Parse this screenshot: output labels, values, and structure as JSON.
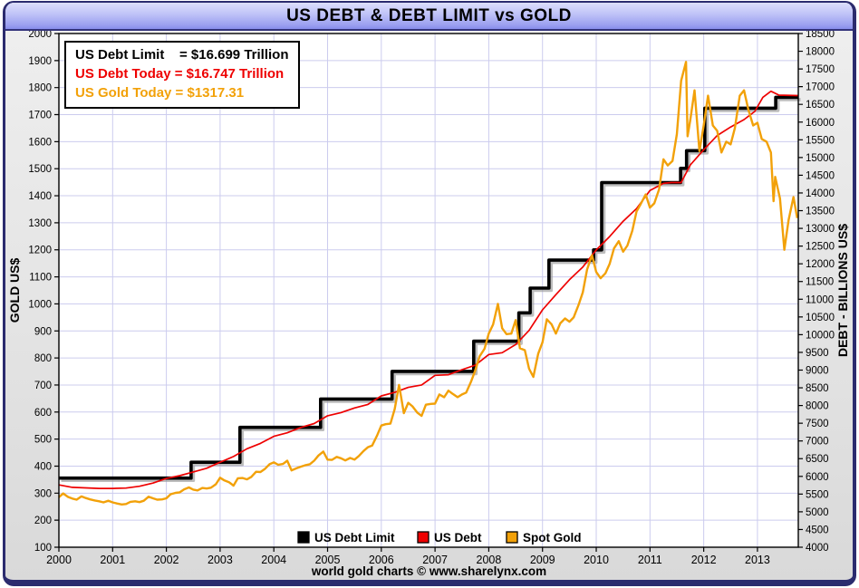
{
  "window": {
    "title": "US DEBT & DEBT LIMIT vs GOLD",
    "footer": "world gold charts © www.sharelynx.com"
  },
  "info_box": {
    "lines": [
      {
        "text": "US Debt Limit    = $16.699 Trillion",
        "color": "#000000"
      },
      {
        "text": "US Debt Today = $16.747 Trillion",
        "color": "#ee0000"
      },
      {
        "text": "US Gold Today = $1317.31",
        "color": "#f2a109"
      }
    ]
  },
  "colors": {
    "debt_limit_line": "#000000",
    "debt_line": "#ee0000",
    "gold_line": "#f2a109",
    "gridline": "#ccccee",
    "plot_background": "#ffffff",
    "panel_background": "#e4e4e4",
    "title_bar": "#b4b8f6",
    "frame_border": "#2b2b6e"
  },
  "chart_data": {
    "type": "line",
    "title": "US DEBT & DEBT LIMIT vs GOLD",
    "x_axis": {
      "range": [
        2000,
        2013.76
      ],
      "ticks": [
        2000,
        2001,
        2002,
        2003,
        2004,
        2005,
        2006,
        2007,
        2008,
        2009,
        2010,
        2011,
        2012,
        2013
      ],
      "gridlines_yearly": true
    },
    "left_axis": {
      "label": "GOLD US$",
      "range": [
        100,
        2000
      ],
      "tick_step": 100,
      "ticks": [
        100,
        200,
        300,
        400,
        500,
        600,
        700,
        800,
        900,
        1000,
        1100,
        1200,
        1300,
        1400,
        1500,
        1600,
        1700,
        1800,
        1900,
        2000
      ]
    },
    "right_axis": {
      "label": "DEBT - BILLIONS US$",
      "range": [
        4000,
        18500
      ],
      "tick_step": 500,
      "ticks": [
        4000,
        4500,
        5000,
        5500,
        6000,
        6500,
        7000,
        7500,
        8000,
        8500,
        9000,
        9500,
        10000,
        10500,
        11000,
        11500,
        12000,
        12500,
        13000,
        13500,
        14000,
        14500,
        15000,
        15500,
        16000,
        16500,
        17000,
        17500,
        18000,
        18500
      ]
    },
    "legend": {
      "position": "bottom-center",
      "items": [
        {
          "label": "US Debt Limit",
          "color": "#000000"
        },
        {
          "label": "US Debt",
          "color": "#ee0000"
        },
        {
          "label": "Spot Gold",
          "color": "#f2a109"
        }
      ]
    },
    "series": [
      {
        "name": "US Debt Limit",
        "axis": "right",
        "type": "step",
        "color": "#000000",
        "width": 3.6,
        "shadow": true,
        "points": [
          [
            2000.0,
            5950
          ],
          [
            2002.46,
            5950
          ],
          [
            2002.46,
            6400
          ],
          [
            2003.37,
            6400
          ],
          [
            2003.37,
            7384
          ],
          [
            2004.87,
            7384
          ],
          [
            2004.87,
            8184
          ],
          [
            2006.2,
            8184
          ],
          [
            2006.2,
            8965
          ],
          [
            2007.72,
            8965
          ],
          [
            2007.72,
            9815
          ],
          [
            2008.56,
            9815
          ],
          [
            2008.56,
            10615
          ],
          [
            2008.77,
            10615
          ],
          [
            2008.77,
            11315
          ],
          [
            2009.12,
            11315
          ],
          [
            2009.12,
            12104
          ],
          [
            2009.95,
            12104
          ],
          [
            2009.95,
            12394
          ],
          [
            2010.1,
            12394
          ],
          [
            2010.1,
            14294
          ],
          [
            2011.57,
            14294
          ],
          [
            2011.57,
            14694
          ],
          [
            2011.68,
            14694
          ],
          [
            2011.68,
            15194
          ],
          [
            2012.02,
            15194
          ],
          [
            2012.02,
            16394
          ],
          [
            2013.34,
            16394
          ],
          [
            2013.34,
            16699
          ],
          [
            2013.76,
            16699
          ]
        ]
      },
      {
        "name": "US Debt",
        "axis": "right",
        "type": "line",
        "color": "#ee0000",
        "width": 1.7,
        "points": [
          [
            2000.0,
            5760
          ],
          [
            2000.25,
            5690
          ],
          [
            2000.5,
            5675
          ],
          [
            2000.75,
            5660
          ],
          [
            2001.0,
            5660
          ],
          [
            2001.25,
            5670
          ],
          [
            2001.5,
            5720
          ],
          [
            2001.75,
            5810
          ],
          [
            2002.0,
            5940
          ],
          [
            2002.25,
            6020
          ],
          [
            2002.5,
            6125
          ],
          [
            2002.75,
            6230
          ],
          [
            2003.0,
            6400
          ],
          [
            2003.25,
            6560
          ],
          [
            2003.5,
            6780
          ],
          [
            2003.75,
            6930
          ],
          [
            2004.0,
            7130
          ],
          [
            2004.25,
            7230
          ],
          [
            2004.5,
            7380
          ],
          [
            2004.75,
            7490
          ],
          [
            2005.0,
            7710
          ],
          [
            2005.25,
            7800
          ],
          [
            2005.5,
            7930
          ],
          [
            2005.75,
            8030
          ],
          [
            2006.0,
            8270
          ],
          [
            2006.25,
            8370
          ],
          [
            2006.5,
            8510
          ],
          [
            2006.75,
            8580
          ],
          [
            2007.0,
            8850
          ],
          [
            2007.25,
            8870
          ],
          [
            2007.5,
            9010
          ],
          [
            2007.75,
            9140
          ],
          [
            2008.0,
            9440
          ],
          [
            2008.25,
            9490
          ],
          [
            2008.5,
            9720
          ],
          [
            2008.75,
            10120
          ],
          [
            2009.0,
            10700
          ],
          [
            2009.25,
            11130
          ],
          [
            2009.5,
            11550
          ],
          [
            2009.75,
            11910
          ],
          [
            2010.0,
            12390
          ],
          [
            2010.25,
            12770
          ],
          [
            2010.5,
            13200
          ],
          [
            2010.75,
            13560
          ],
          [
            2011.0,
            14070
          ],
          [
            2011.25,
            14270
          ],
          [
            2011.4,
            14294
          ],
          [
            2011.58,
            14294
          ],
          [
            2011.75,
            14790
          ],
          [
            2012.0,
            15220
          ],
          [
            2012.25,
            15620
          ],
          [
            2012.5,
            15860
          ],
          [
            2012.75,
            16070
          ],
          [
            2012.95,
            16300
          ],
          [
            2013.1,
            16700
          ],
          [
            2013.25,
            16870
          ],
          [
            2013.4,
            16760
          ],
          [
            2013.76,
            16747
          ]
        ]
      },
      {
        "name": "Spot Gold",
        "axis": "left",
        "type": "line",
        "color": "#f2a109",
        "width": 2.4,
        "points": [
          [
            2000.0,
            285
          ],
          [
            2000.08,
            299
          ],
          [
            2000.17,
            286
          ],
          [
            2000.25,
            280
          ],
          [
            2000.33,
            276
          ],
          [
            2000.42,
            288
          ],
          [
            2000.5,
            282
          ],
          [
            2000.58,
            277
          ],
          [
            2000.67,
            273
          ],
          [
            2000.75,
            270
          ],
          [
            2000.83,
            266
          ],
          [
            2000.92,
            272
          ],
          [
            2001.0,
            266
          ],
          [
            2001.08,
            262
          ],
          [
            2001.17,
            258
          ],
          [
            2001.25,
            260
          ],
          [
            2001.33,
            268
          ],
          [
            2001.42,
            270
          ],
          [
            2001.5,
            267
          ],
          [
            2001.58,
            272
          ],
          [
            2001.67,
            287
          ],
          [
            2001.75,
            281
          ],
          [
            2001.83,
            276
          ],
          [
            2001.92,
            277
          ],
          [
            2002.0,
            281
          ],
          [
            2002.08,
            296
          ],
          [
            2002.17,
            301
          ],
          [
            2002.25,
            303
          ],
          [
            2002.33,
            314
          ],
          [
            2002.42,
            321
          ],
          [
            2002.5,
            313
          ],
          [
            2002.58,
            310
          ],
          [
            2002.67,
            319
          ],
          [
            2002.75,
            317
          ],
          [
            2002.83,
            320
          ],
          [
            2002.92,
            333
          ],
          [
            2003.0,
            357
          ],
          [
            2003.08,
            347
          ],
          [
            2003.17,
            340
          ],
          [
            2003.25,
            328
          ],
          [
            2003.33,
            355
          ],
          [
            2003.42,
            356
          ],
          [
            2003.5,
            351
          ],
          [
            2003.58,
            360
          ],
          [
            2003.67,
            379
          ],
          [
            2003.75,
            378
          ],
          [
            2003.83,
            389
          ],
          [
            2003.92,
            407
          ],
          [
            2004.0,
            414
          ],
          [
            2004.08,
            405
          ],
          [
            2004.17,
            408
          ],
          [
            2004.25,
            420
          ],
          [
            2004.33,
            384
          ],
          [
            2004.42,
            392
          ],
          [
            2004.5,
            398
          ],
          [
            2004.58,
            403
          ],
          [
            2004.67,
            407
          ],
          [
            2004.75,
            420
          ],
          [
            2004.83,
            439
          ],
          [
            2004.92,
            454
          ],
          [
            2005.0,
            424
          ],
          [
            2005.08,
            423
          ],
          [
            2005.17,
            434
          ],
          [
            2005.25,
            429
          ],
          [
            2005.33,
            421
          ],
          [
            2005.42,
            430
          ],
          [
            2005.5,
            424
          ],
          [
            2005.58,
            437
          ],
          [
            2005.67,
            456
          ],
          [
            2005.75,
            470
          ],
          [
            2005.83,
            476
          ],
          [
            2005.92,
            513
          ],
          [
            2006.0,
            550
          ],
          [
            2006.08,
            555
          ],
          [
            2006.17,
            557
          ],
          [
            2006.25,
            611
          ],
          [
            2006.33,
            700
          ],
          [
            2006.42,
            596
          ],
          [
            2006.5,
            634
          ],
          [
            2006.58,
            621
          ],
          [
            2006.67,
            598
          ],
          [
            2006.75,
            586
          ],
          [
            2006.83,
            627
          ],
          [
            2006.92,
            630
          ],
          [
            2007.0,
            631
          ],
          [
            2007.08,
            665
          ],
          [
            2007.17,
            655
          ],
          [
            2007.25,
            679
          ],
          [
            2007.33,
            667
          ],
          [
            2007.42,
            655
          ],
          [
            2007.5,
            665
          ],
          [
            2007.58,
            672
          ],
          [
            2007.67,
            712
          ],
          [
            2007.75,
            755
          ],
          [
            2007.83,
            806
          ],
          [
            2007.92,
            834
          ],
          [
            2008.0,
            890
          ],
          [
            2008.08,
            924
          ],
          [
            2008.17,
            1000
          ],
          [
            2008.25,
            910
          ],
          [
            2008.33,
            888
          ],
          [
            2008.42,
            890
          ],
          [
            2008.5,
            940
          ],
          [
            2008.58,
            836
          ],
          [
            2008.67,
            829
          ],
          [
            2008.75,
            760
          ],
          [
            2008.83,
            730
          ],
          [
            2008.92,
            816
          ],
          [
            2009.0,
            858
          ],
          [
            2009.08,
            943
          ],
          [
            2009.17,
            924
          ],
          [
            2009.25,
            890
          ],
          [
            2009.33,
            928
          ],
          [
            2009.42,
            946
          ],
          [
            2009.5,
            934
          ],
          [
            2009.58,
            950
          ],
          [
            2009.67,
            996
          ],
          [
            2009.75,
            1043
          ],
          [
            2009.83,
            1127
          ],
          [
            2009.92,
            1180
          ],
          [
            2010.0,
            1118
          ],
          [
            2010.08,
            1095
          ],
          [
            2010.17,
            1113
          ],
          [
            2010.25,
            1148
          ],
          [
            2010.33,
            1205
          ],
          [
            2010.42,
            1232
          ],
          [
            2010.5,
            1193
          ],
          [
            2010.58,
            1216
          ],
          [
            2010.67,
            1270
          ],
          [
            2010.75,
            1342
          ],
          [
            2010.83,
            1370
          ],
          [
            2010.92,
            1405
          ],
          [
            2011.0,
            1356
          ],
          [
            2011.08,
            1372
          ],
          [
            2011.17,
            1424
          ],
          [
            2011.25,
            1535
          ],
          [
            2011.33,
            1512
          ],
          [
            2011.42,
            1529
          ],
          [
            2011.5,
            1628
          ],
          [
            2011.58,
            1825
          ],
          [
            2011.67,
            1895
          ],
          [
            2011.7,
            1620
          ],
          [
            2011.75,
            1680
          ],
          [
            2011.83,
            1790
          ],
          [
            2011.92,
            1565
          ],
          [
            2012.0,
            1660
          ],
          [
            2012.08,
            1770
          ],
          [
            2012.17,
            1660
          ],
          [
            2012.25,
            1640
          ],
          [
            2012.33,
            1560
          ],
          [
            2012.42,
            1600
          ],
          [
            2012.5,
            1590
          ],
          [
            2012.58,
            1650
          ],
          [
            2012.67,
            1770
          ],
          [
            2012.75,
            1790
          ],
          [
            2012.83,
            1720
          ],
          [
            2012.92,
            1660
          ],
          [
            2013.0,
            1670
          ],
          [
            2013.08,
            1610
          ],
          [
            2013.17,
            1600
          ],
          [
            2013.25,
            1560
          ],
          [
            2013.3,
            1380
          ],
          [
            2013.33,
            1470
          ],
          [
            2013.42,
            1390
          ],
          [
            2013.5,
            1200
          ],
          [
            2013.58,
            1310
          ],
          [
            2013.67,
            1395
          ],
          [
            2013.74,
            1317.31
          ]
        ]
      }
    ]
  }
}
